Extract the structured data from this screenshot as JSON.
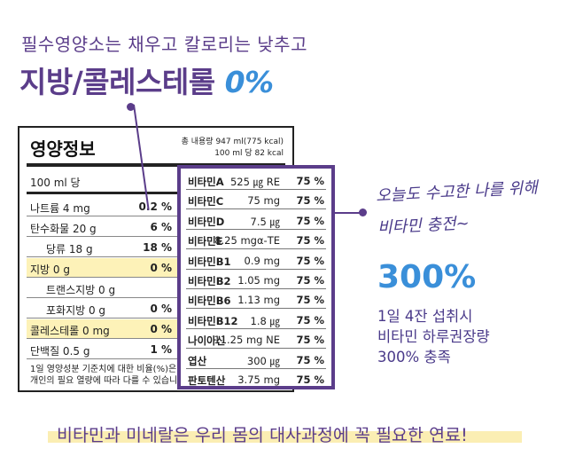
{
  "headline": {
    "line1": "필수영양소는 채우고 칼로리는 낮추고",
    "line2_main": "지방/콜레스테롤 ",
    "line2_pct": "0%"
  },
  "label": {
    "title": "영양정보",
    "total_line1": "총 내용량 947 ml(775 kcal)",
    "total_line2": "100 ml 당 82 kcal",
    "serving": "100 ml 당",
    "rows": [
      {
        "name": "나트륨 4 mg",
        "pct": "0.2 %",
        "highlight": false,
        "indent": false
      },
      {
        "name": "탄수화물 20 g",
        "pct": "6 %",
        "highlight": false,
        "indent": false
      },
      {
        "name": "당류 18 g",
        "pct": "18 %",
        "highlight": false,
        "indent": true
      },
      {
        "name": "지방 0 g",
        "pct": "0 %",
        "highlight": true,
        "indent": false
      },
      {
        "name": "트랜스지방 0 g",
        "pct": "",
        "highlight": false,
        "indent": true
      },
      {
        "name": "포화지방 0 g",
        "pct": "0 %",
        "highlight": false,
        "indent": true
      },
      {
        "name": "콜레스테롤 0 mg",
        "pct": "0 %",
        "highlight": true,
        "indent": false
      },
      {
        "name": "단백질 0.5 g",
        "pct": "1 %",
        "highlight": false,
        "indent": false
      }
    ],
    "footnote1": "1일 영양성분 기준치에 대한 비율(%)은",
    "footnote2": "개인의 필요 열량에 따라 다를 수 있습니다."
  },
  "vitamins": [
    {
      "name": "비타민A",
      "amount": "525 ㎍ RE",
      "pct": "75 %"
    },
    {
      "name": "비타민C",
      "amount": "75 mg",
      "pct": "75 %"
    },
    {
      "name": "비타민D",
      "amount": "7.5 ㎍",
      "pct": "75 %"
    },
    {
      "name": "비타민E",
      "amount": "8.25 mgα-TE",
      "pct": "75 %"
    },
    {
      "name": "비타민B1",
      "amount": "0.9 mg",
      "pct": "75 %"
    },
    {
      "name": "비타민B2",
      "amount": "1.05 mg",
      "pct": "75 %"
    },
    {
      "name": "비타민B6",
      "amount": "1.13 mg",
      "pct": "75 %"
    },
    {
      "name": "비타민B12",
      "amount": "1.8 ㎍",
      "pct": "75 %"
    },
    {
      "name": "나이아신",
      "amount": "11.25 mg NE",
      "pct": "75 %"
    },
    {
      "name": "엽산",
      "amount": "300 ㎍",
      "pct": "75 %"
    },
    {
      "name": "판토텐산",
      "amount": "3.75 mg",
      "pct": "75 %"
    }
  ],
  "handwritten": {
    "line1": "오늘도 수고한 나를 위해",
    "line2": "비타민 충전~"
  },
  "highlight_pct": "300%",
  "desc": {
    "line1": "1일 4잔 섭취시",
    "line2": "비타민 하루권장량",
    "line3": "300% 충족"
  },
  "bottom": "비타민과 미네랄은 우리 몸의 대사과정에 꼭 필요한 연료!",
  "colors": {
    "purple": "#5b3d8a",
    "blue": "#3a8fd9",
    "highlight": "#fbeeb3"
  }
}
